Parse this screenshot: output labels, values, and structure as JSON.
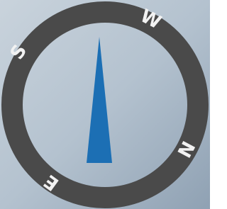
{
  "compass": {
    "labels": {
      "south": "S",
      "west": "W",
      "north": "N",
      "east": "E"
    }
  }
}
